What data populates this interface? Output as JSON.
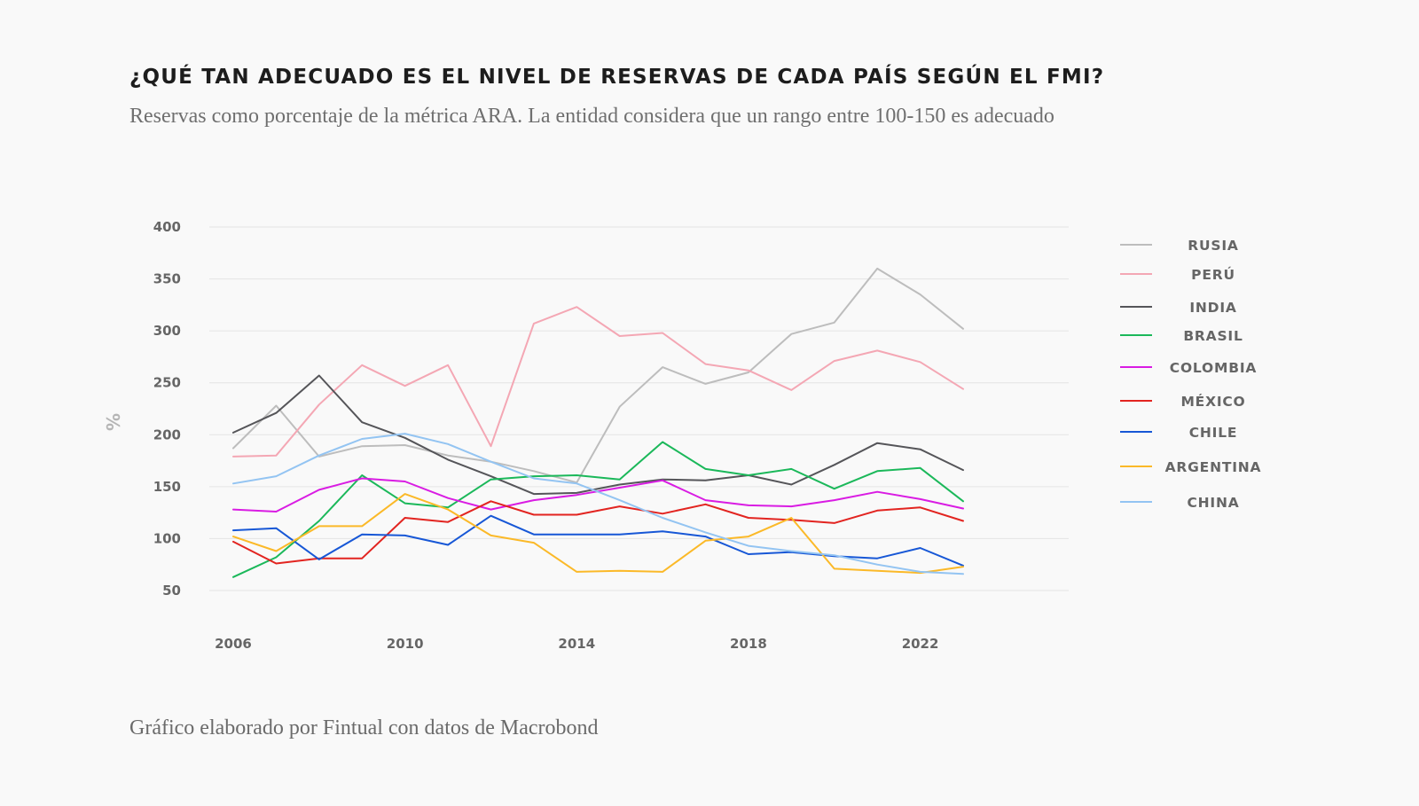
{
  "title": "¿QUÉ TAN ADECUADO ES EL NIVEL DE RESERVAS DE CADA PAÍS SEGÚN EL FMI?",
  "subtitle": "Reservas como porcentaje de la métrica ARA. La entidad considera que un rango entre 100-150 es adecuado",
  "footer": "Gráfico elaborado por Fintual con datos de Macrobond",
  "chart_data": {
    "type": "line",
    "xlabel": "",
    "ylabel": "%",
    "x": [
      2006,
      2007,
      2008,
      2009,
      2010,
      2011,
      2012,
      2013,
      2014,
      2015,
      2016,
      2017,
      2018,
      2019,
      2020,
      2021,
      2022,
      2023
    ],
    "x_ticks": [
      {
        "value": 2006,
        "label": "2006"
      },
      {
        "value": 2010,
        "label": "2010"
      },
      {
        "value": 2014,
        "label": "2014"
      },
      {
        "value": 2018,
        "label": "2018"
      },
      {
        "value": 2022,
        "label": "2022"
      }
    ],
    "y_ticks": [
      {
        "value": 50,
        "label": "50"
      },
      {
        "value": 100,
        "label": "100"
      },
      {
        "value": 150,
        "label": "150"
      },
      {
        "value": 200,
        "label": "200"
      },
      {
        "value": 250,
        "label": "250"
      },
      {
        "value": 300,
        "label": "300"
      },
      {
        "value": 350,
        "label": "350"
      },
      {
        "value": 400,
        "label": "400"
      }
    ],
    "xlim": [
      2006,
      2025.5
    ],
    "ylim": [
      50,
      400
    ],
    "grid": "horizontal",
    "legend_position": "right",
    "series": [
      {
        "name": "RUSIA",
        "color": "#bdbdbd",
        "values": [
          187,
          228,
          179,
          189,
          190,
          180,
          174,
          165,
          154,
          227,
          265,
          249,
          260,
          297,
          308,
          360,
          335,
          302
        ]
      },
      {
        "name": "PERÚ",
        "color": "#f4a7b4",
        "values": [
          179,
          180,
          229,
          267,
          247,
          267,
          189,
          307,
          323,
          295,
          298,
          268,
          262,
          243,
          271,
          281,
          270,
          244
        ]
      },
      {
        "name": "INDIA",
        "color": "#555559",
        "values": [
          202,
          221,
          257,
          212,
          197,
          176,
          160,
          143,
          144,
          152,
          157,
          156,
          161,
          152,
          171,
          192,
          186,
          166
        ]
      },
      {
        "name": "BRASIL",
        "color": "#1bb85a",
        "values": [
          63,
          82,
          117,
          161,
          134,
          130,
          157,
          160,
          161,
          157,
          193,
          167,
          161,
          167,
          148,
          165,
          168,
          136
        ]
      },
      {
        "name": "COLOMBIA",
        "color": "#d91ce3",
        "values": [
          128,
          126,
          147,
          158,
          155,
          139,
          128,
          137,
          142,
          149,
          156,
          137,
          132,
          131,
          137,
          145,
          138,
          129
        ]
      },
      {
        "name": "MÉXICO",
        "color": "#e22420",
        "values": [
          97,
          76,
          81,
          81,
          120,
          116,
          136,
          123,
          123,
          131,
          124,
          133,
          120,
          118,
          115,
          127,
          130,
          117
        ]
      },
      {
        "name": "CHILE",
        "color": "#1757d6",
        "values": [
          108,
          110,
          80,
          104,
          103,
          94,
          122,
          104,
          104,
          104,
          107,
          102,
          85,
          87,
          83,
          81,
          91,
          74
        ]
      },
      {
        "name": "ARGENTINA",
        "color": "#fbb928",
        "values": [
          102,
          88,
          112,
          112,
          143,
          128,
          103,
          96,
          68,
          69,
          68,
          98,
          102,
          120,
          71,
          69,
          67,
          73
        ]
      },
      {
        "name": "CHINA",
        "color": "#93c4f2",
        "values": [
          153,
          160,
          180,
          196,
          201,
          191,
          174,
          158,
          153,
          137,
          120,
          106,
          93,
          88,
          84,
          75,
          68,
          66
        ]
      }
    ]
  }
}
